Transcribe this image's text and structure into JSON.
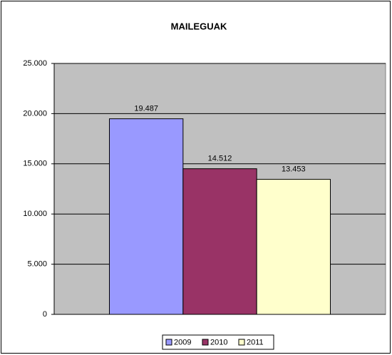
{
  "chart_data": {
    "type": "bar",
    "title": "MAILEGUAK",
    "categories": [
      null
    ],
    "series": [
      {
        "name": "2009",
        "color": "#9999ff",
        "values": [
          19487
        ],
        "value_labels": [
          "19.487"
        ]
      },
      {
        "name": "2010",
        "color": "#993366",
        "values": [
          14512
        ],
        "value_labels": [
          "14.512"
        ]
      },
      {
        "name": "2011",
        "color": "#ffffcc",
        "values": [
          13453
        ],
        "value_labels": [
          "13.453"
        ]
      }
    ],
    "ylim": [
      0,
      25000
    ],
    "yticks": [
      0,
      {
        "value": 5000,
        "label": "5.000"
      },
      {
        "value": 10000,
        "label": "10.000"
      },
      {
        "value": 15000,
        "label": "15.000"
      },
      {
        "value": 20000,
        "label": "20.000"
      },
      {
        "value": 25000,
        "label": "25.000"
      }
    ],
    "grid": true,
    "legend": "bottom"
  }
}
